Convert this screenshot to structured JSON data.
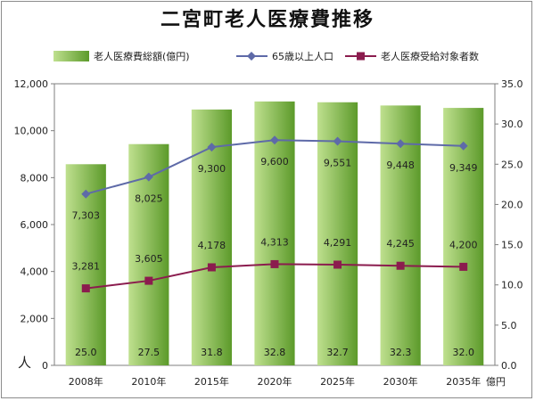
{
  "title": "二宮町老人医療費推移",
  "left_unit": "人",
  "right_unit": "億円",
  "colors": {
    "bar_light": "#bfe08f",
    "bar_dark": "#5c9a2a",
    "line_population": "#5e6aa8",
    "line_recipients": "#8b1c4e"
  },
  "chart_data": {
    "type": "bar",
    "categories": [
      "2008年",
      "2010年",
      "2015年",
      "2020年",
      "2025年",
      "2030年",
      "2035年"
    ],
    "left_axis": {
      "ylim": [
        0,
        12000
      ],
      "ticks": [
        "0",
        "2,000",
        "4,000",
        "6,000",
        "8,000",
        "10,000",
        "12,000"
      ],
      "label": "人"
    },
    "right_axis": {
      "ylim": [
        0,
        35
      ],
      "ticks": [
        "0.0",
        "5.0",
        "10.0",
        "15.0",
        "20.0",
        "25.0",
        "30.0",
        "35.0"
      ],
      "label": "億円"
    },
    "grid": false,
    "legend_position": "top",
    "series": [
      {
        "name": "老人医療費総額(億円)",
        "type": "bar",
        "axis": "right",
        "values": [
          25.0,
          27.5,
          31.8,
          32.8,
          32.7,
          32.3,
          32.0
        ],
        "labels": [
          "25.0",
          "27.5",
          "31.8",
          "32.8",
          "32.7",
          "32.3",
          "32.0"
        ]
      },
      {
        "name": "65歳以上人口",
        "type": "line",
        "axis": "left",
        "marker": "diamond",
        "values": [
          7303,
          8025,
          9300,
          9600,
          9551,
          9448,
          9349
        ],
        "labels": [
          "7,303",
          "8,025",
          "9,300",
          "9,600",
          "9,551",
          "9,448",
          "9,349"
        ]
      },
      {
        "name": "老人医療受給対象者数",
        "type": "line",
        "axis": "left",
        "marker": "square",
        "values": [
          3281,
          3605,
          4178,
          4313,
          4291,
          4245,
          4200
        ],
        "labels": [
          "3,281",
          "3,605",
          "4,178",
          "4,313",
          "4,291",
          "4,245",
          "4,200"
        ]
      }
    ]
  }
}
